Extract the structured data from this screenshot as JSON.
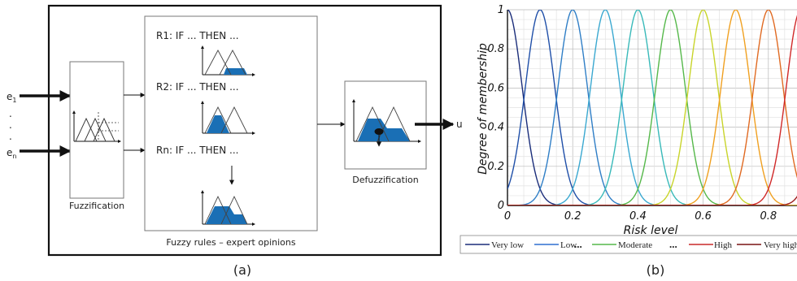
{
  "diagram": {
    "inputs": [
      {
        "base": "e",
        "sub": "1"
      },
      {
        "base": "e",
        "sub": "n"
      }
    ],
    "dots": ".",
    "output_label": "u",
    "fuzzification_label": "Fuzzification",
    "rules": [
      {
        "label": "R1: IF ... THEN ..."
      },
      {
        "label": "R2: IF ... THEN ..."
      },
      {
        "label": "Rn: IF ... THEN ..."
      }
    ],
    "rules_caption": "Fuzzy rules – expert opinions",
    "defuzzification_label": "Defuzzification",
    "caption": "(a)",
    "fill_color": "#1a6fb5"
  },
  "chart_data": {
    "type": "line",
    "xlabel": "Risk level",
    "ylabel": "Degree of membership",
    "xlim": [
      0,
      1
    ],
    "ylim": [
      0,
      1
    ],
    "xticks": [
      "0",
      "0.2",
      "0.4",
      "0.6",
      "0.8"
    ],
    "yticks": [
      "0",
      "0.2",
      "0.4",
      "0.6",
      "0.8",
      "1"
    ],
    "grid": true,
    "curve_shape": "gaussian",
    "curve_width": 0.045,
    "centers": [
      0,
      0.1,
      0.2,
      0.3,
      0.4,
      0.5,
      0.6,
      0.7,
      0.8,
      0.9,
      1.0
    ],
    "colors": [
      "#1a2d7a",
      "#1f4fa8",
      "#2f7ec6",
      "#3aa8d0",
      "#38b9b9",
      "#55b84a",
      "#c8d42a",
      "#f0a020",
      "#e06a22",
      "#d02828",
      "#9b1b1b"
    ],
    "legend": [
      {
        "name": "Very low",
        "color": "#1a2d7a"
      },
      {
        "name": "Low",
        "color": "#2f6fd0"
      },
      {
        "name": "Moderate",
        "color": "#55b84a"
      },
      {
        "name": "High",
        "color": "#c82828"
      },
      {
        "name": "Very high",
        "color": "#7a1414"
      }
    ],
    "legend_ellipsis": "...",
    "caption": "(b)"
  }
}
